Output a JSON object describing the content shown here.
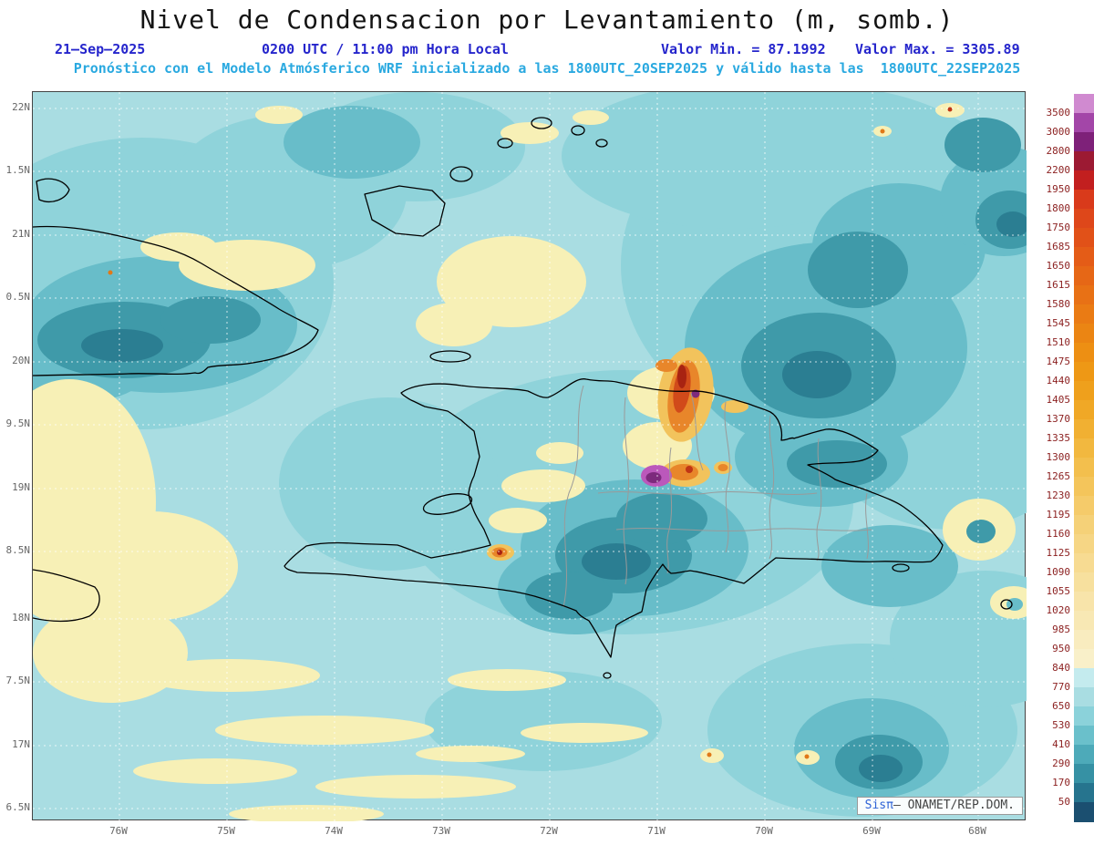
{
  "title": "Nivel de Condensacion por Levantamiento (m, somb.)",
  "subtitle": {
    "date": "21–Sep–2025",
    "time": "0200 UTC / 11:00 pm Hora Local",
    "min": "Valor Min. = 87.1992",
    "max": "Valor Max. = 3305.89",
    "model_line": "Pronóstico con el Modelo Atmósferico WRF inicializado a las 1800UTC_20SEP2025 y válido hasta las  1800UTC_22SEP2025"
  },
  "map": {
    "lat_labels": [
      "22N",
      "1.5N",
      "21N",
      "0.5N",
      "20N",
      "9.5N",
      "19N",
      "8.5N",
      "18N",
      "7.5N",
      "17N",
      "6.5N"
    ],
    "lon_labels": [
      "76W",
      "75W",
      "74W",
      "73W",
      "72W",
      "71W",
      "70W",
      "69W",
      "68W"
    ],
    "watermark": {
      "brand": "Sisπ",
      "rest": "– ONAMET/REP.DOM."
    }
  },
  "colorbar": {
    "labels": [
      "3500",
      "3000",
      "2800",
      "2200",
      "1950",
      "1800",
      "1750",
      "1685",
      "1650",
      "1615",
      "1580",
      "1545",
      "1510",
      "1475",
      "1440",
      "1405",
      "1370",
      "1335",
      "1300",
      "1265",
      "1230",
      "1195",
      "1160",
      "1125",
      "1090",
      "1055",
      "1020",
      "985",
      "950",
      "840",
      "770",
      "650",
      "530",
      "410",
      "290",
      "170",
      "50"
    ],
    "colors": [
      "#d08ad0",
      "#a346a8",
      "#7e2179",
      "#9c1a33",
      "#c21f1f",
      "#d93a1b",
      "#de471a",
      "#e15118",
      "#e45c17",
      "#e66716",
      "#e87115",
      "#ea7b14",
      "#eb8513",
      "#ed8f13",
      "#ee9815",
      "#efa01c",
      "#f0a826",
      "#f1b032",
      "#f2b83f",
      "#f3bf4d",
      "#f4c55b",
      "#f5cb6a",
      "#f5d178",
      "#f6d685",
      "#f7db92",
      "#f7e09e",
      "#f8e4aa",
      "#f8e8b4",
      "#f9ecbf",
      "#f9f0c9",
      "#c4ebee",
      "#a9dde2",
      "#8bd2da",
      "#6ac0cb",
      "#4daab9",
      "#3691a4",
      "#26748e",
      "#1b4f70"
    ]
  },
  "chart_data": {
    "type": "heatmap",
    "title": "Nivel de Condensacion por Levantamiento (m, somb.)",
    "units": "m",
    "valid_utc": "0200 UTC",
    "valid_local": "11:00 pm Hora Local 21-Sep-2025",
    "value_min": 87.1992,
    "value_max": 3305.89,
    "contour_levels": [
      50,
      170,
      290,
      410,
      530,
      650,
      770,
      840,
      950,
      985,
      1020,
      1055,
      1090,
      1125,
      1160,
      1195,
      1230,
      1265,
      1300,
      1335,
      1370,
      1405,
      1440,
      1475,
      1510,
      1545,
      1580,
      1615,
      1650,
      1685,
      1750,
      1800,
      1950,
      2200,
      2800,
      3000,
      3500
    ],
    "x_ticks": [
      "76W",
      "75W",
      "74W",
      "73W",
      "72W",
      "71W",
      "70W",
      "69W",
      "68W"
    ],
    "y_ticks_displayed": [
      "22N",
      "1.5N",
      "21N",
      "0.5N",
      "20N",
      "9.5N",
      "19N",
      "8.5N",
      "18N",
      "7.5N",
      "17N",
      "6.5N"
    ],
    "legend_position": "right"
  }
}
